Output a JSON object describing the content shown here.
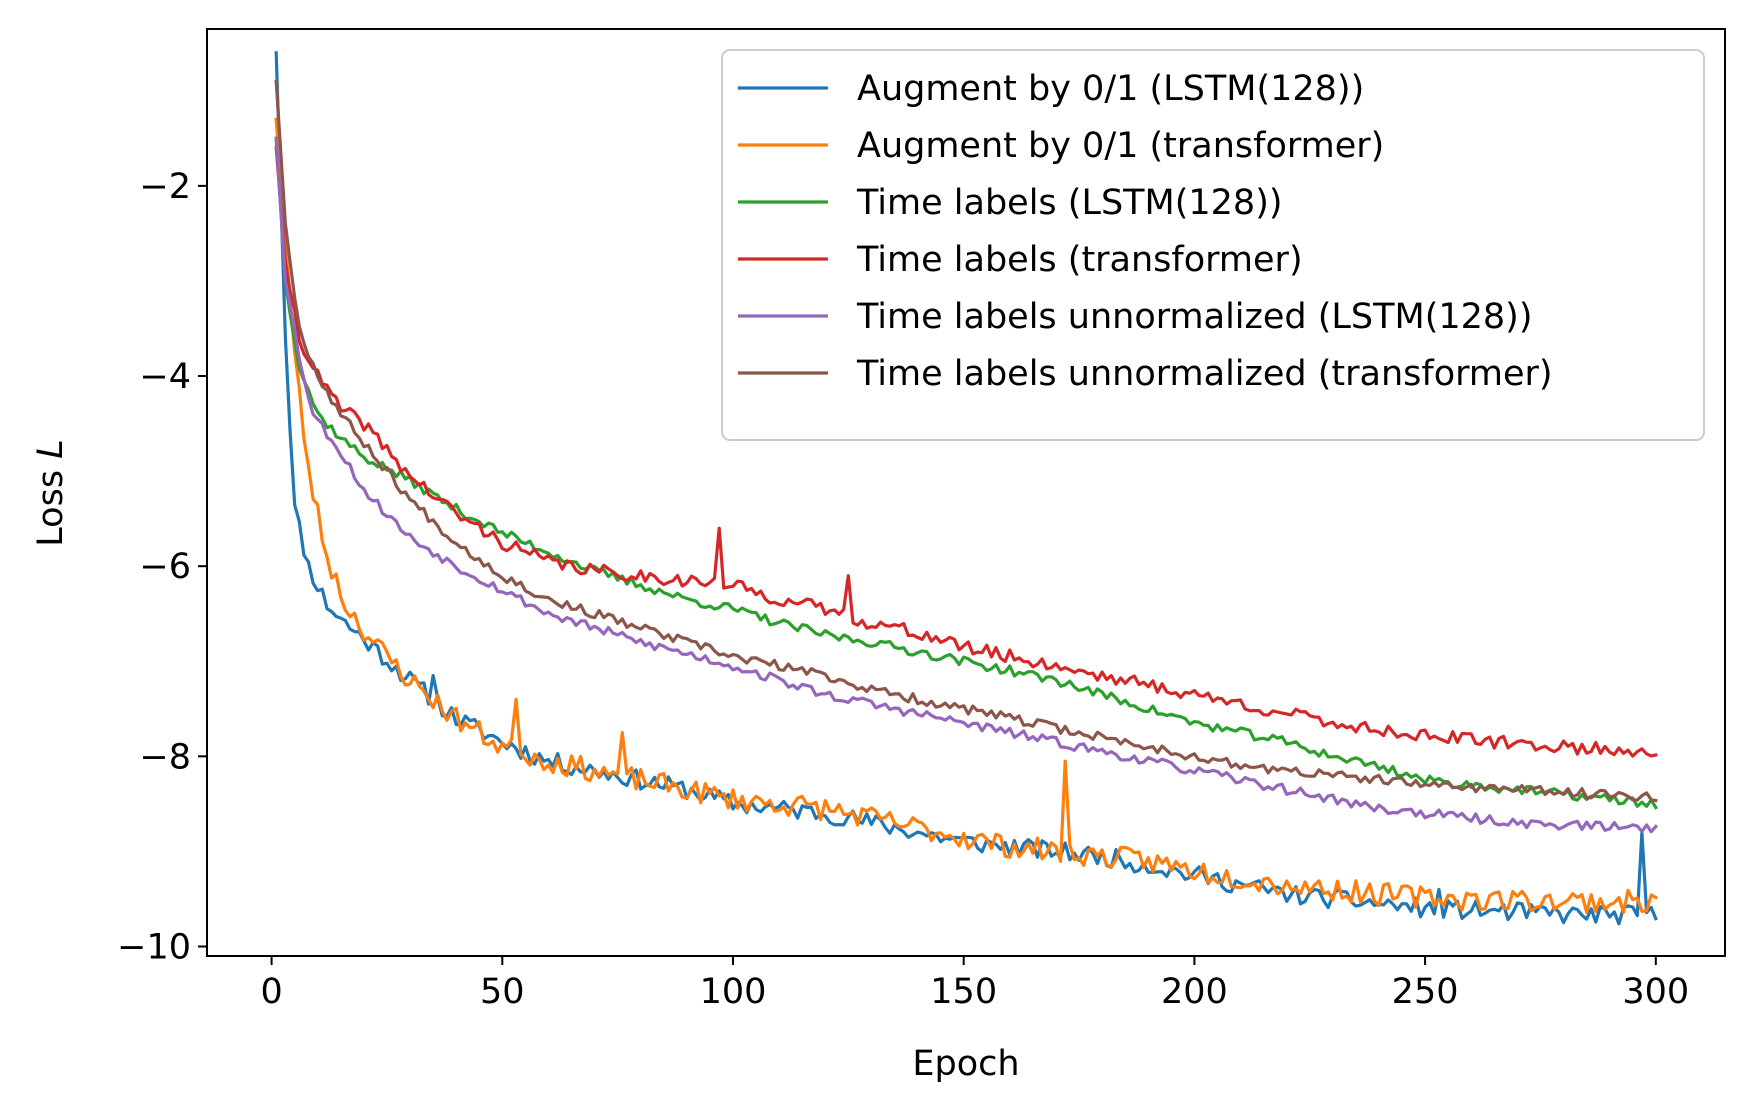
{
  "chart_data": {
    "type": "line",
    "title": "",
    "xlabel": "Epoch",
    "ylabel": "Loss L",
    "ylabel_parts": {
      "text": "Loss ",
      "italic": "L"
    },
    "xlim": [
      -14,
      315
    ],
    "ylim": [
      -10.1,
      -0.35
    ],
    "xticks": [
      0,
      50,
      100,
      150,
      200,
      250,
      300
    ],
    "yticks": [
      -2,
      -4,
      -6,
      -8,
      -10
    ],
    "xtick_labels": [
      "0",
      "50",
      "100",
      "150",
      "200",
      "250",
      "300"
    ],
    "ytick_labels": [
      "−2",
      "−4",
      "−6",
      "−8",
      "−10"
    ],
    "grid": false,
    "legend_position": "top-right",
    "x_range": [
      1,
      300
    ],
    "noise_seeds": [
      11,
      23,
      37,
      41,
      53,
      67
    ],
    "series": [
      {
        "name": "Augment by 0/1 (LSTM(128))",
        "color": "#1f77b4",
        "noise": 0.1,
        "points": [
          [
            1,
            -0.6
          ],
          [
            3,
            -3.6
          ],
          [
            5,
            -5.4
          ],
          [
            8,
            -6.0
          ],
          [
            12,
            -6.4
          ],
          [
            16,
            -6.6
          ],
          [
            22,
            -6.85
          ],
          [
            30,
            -7.2
          ],
          [
            40,
            -7.6
          ],
          [
            50,
            -7.85
          ],
          [
            60,
            -8.05
          ],
          [
            70,
            -8.15
          ],
          [
            80,
            -8.25
          ],
          [
            90,
            -8.35
          ],
          [
            100,
            -8.5
          ],
          [
            110,
            -8.55
          ],
          [
            120,
            -8.6
          ],
          [
            130,
            -8.7
          ],
          [
            140,
            -8.8
          ],
          [
            150,
            -8.9
          ],
          [
            160,
            -8.95
          ],
          [
            170,
            -9.0
          ],
          [
            180,
            -9.05
          ],
          [
            190,
            -9.15
          ],
          [
            200,
            -9.25
          ],
          [
            210,
            -9.35
          ],
          [
            220,
            -9.45
          ],
          [
            230,
            -9.5
          ],
          [
            240,
            -9.55
          ],
          [
            250,
            -9.6
          ],
          [
            260,
            -9.62
          ],
          [
            270,
            -9.64
          ],
          [
            280,
            -9.66
          ],
          [
            290,
            -9.67
          ],
          [
            300,
            -9.67
          ]
        ],
        "spikes": [
          [
            35,
            -7.15
          ],
          [
            253,
            -9.4
          ],
          [
            297,
            -8.8
          ]
        ]
      },
      {
        "name": "Augment by 0/1 (transformer)",
        "color": "#ff7f0e",
        "noise": 0.12,
        "points": [
          [
            1,
            -1.3
          ],
          [
            3,
            -2.6
          ],
          [
            5,
            -3.8
          ],
          [
            8,
            -5.0
          ],
          [
            12,
            -5.9
          ],
          [
            16,
            -6.4
          ],
          [
            22,
            -6.8
          ],
          [
            30,
            -7.2
          ],
          [
            40,
            -7.6
          ],
          [
            50,
            -7.9
          ],
          [
            60,
            -8.05
          ],
          [
            70,
            -8.15
          ],
          [
            80,
            -8.25
          ],
          [
            90,
            -8.35
          ],
          [
            100,
            -8.45
          ],
          [
            110,
            -8.5
          ],
          [
            120,
            -8.55
          ],
          [
            130,
            -8.65
          ],
          [
            140,
            -8.75
          ],
          [
            150,
            -8.85
          ],
          [
            160,
            -8.95
          ],
          [
            170,
            -9.0
          ],
          [
            180,
            -9.05
          ],
          [
            190,
            -9.1
          ],
          [
            200,
            -9.2
          ],
          [
            210,
            -9.28
          ],
          [
            220,
            -9.35
          ],
          [
            230,
            -9.4
          ],
          [
            240,
            -9.45
          ],
          [
            250,
            -9.48
          ],
          [
            260,
            -9.5
          ],
          [
            270,
            -9.51
          ],
          [
            280,
            -9.52
          ],
          [
            290,
            -9.53
          ],
          [
            300,
            -9.53
          ]
        ],
        "spikes": [
          [
            172,
            -8.05
          ],
          [
            53,
            -7.4
          ],
          [
            76,
            -7.75
          ]
        ]
      },
      {
        "name": "Time labels (LSTM(128))",
        "color": "#2ca02c",
        "noise": 0.05,
        "points": [
          [
            1,
            -1.5
          ],
          [
            3,
            -3.0
          ],
          [
            6,
            -3.9
          ],
          [
            10,
            -4.4
          ],
          [
            15,
            -4.65
          ],
          [
            20,
            -4.85
          ],
          [
            30,
            -5.1
          ],
          [
            40,
            -5.4
          ],
          [
            50,
            -5.65
          ],
          [
            60,
            -5.85
          ],
          [
            70,
            -6.05
          ],
          [
            80,
            -6.2
          ],
          [
            90,
            -6.35
          ],
          [
            100,
            -6.45
          ],
          [
            110,
            -6.6
          ],
          [
            120,
            -6.72
          ],
          [
            130,
            -6.8
          ],
          [
            140,
            -6.9
          ],
          [
            150,
            -7.0
          ],
          [
            160,
            -7.1
          ],
          [
            170,
            -7.2
          ],
          [
            180,
            -7.35
          ],
          [
            190,
            -7.5
          ],
          [
            200,
            -7.65
          ],
          [
            210,
            -7.75
          ],
          [
            220,
            -7.85
          ],
          [
            230,
            -8.0
          ],
          [
            240,
            -8.1
          ],
          [
            250,
            -8.25
          ],
          [
            260,
            -8.3
          ],
          [
            270,
            -8.35
          ],
          [
            280,
            -8.4
          ],
          [
            290,
            -8.45
          ],
          [
            300,
            -8.5
          ]
        ],
        "spikes": []
      },
      {
        "name": "Time labels (transformer)",
        "color": "#d62728",
        "noise": 0.07,
        "points": [
          [
            1,
            -1.6
          ],
          [
            3,
            -2.8
          ],
          [
            6,
            -3.6
          ],
          [
            10,
            -4.0
          ],
          [
            15,
            -4.35
          ],
          [
            20,
            -4.5
          ],
          [
            30,
            -5.05
          ],
          [
            40,
            -5.45
          ],
          [
            50,
            -5.75
          ],
          [
            60,
            -5.95
          ],
          [
            70,
            -6.05
          ],
          [
            80,
            -6.1
          ],
          [
            90,
            -6.15
          ],
          [
            100,
            -6.2
          ],
          [
            110,
            -6.35
          ],
          [
            120,
            -6.45
          ],
          [
            130,
            -6.6
          ],
          [
            140,
            -6.7
          ],
          [
            150,
            -6.85
          ],
          [
            160,
            -6.95
          ],
          [
            170,
            -7.05
          ],
          [
            180,
            -7.15
          ],
          [
            190,
            -7.25
          ],
          [
            200,
            -7.35
          ],
          [
            210,
            -7.45
          ],
          [
            220,
            -7.55
          ],
          [
            230,
            -7.65
          ],
          [
            240,
            -7.72
          ],
          [
            250,
            -7.78
          ],
          [
            260,
            -7.83
          ],
          [
            270,
            -7.87
          ],
          [
            280,
            -7.9
          ],
          [
            290,
            -7.93
          ],
          [
            300,
            -7.95
          ]
        ],
        "spikes": [
          [
            97,
            -5.6
          ],
          [
            125,
            -6.1
          ]
        ]
      },
      {
        "name": "Time labels unnormalized (LSTM(128))",
        "color": "#9467bd",
        "noise": 0.05,
        "points": [
          [
            1,
            -1.5
          ],
          [
            3,
            -3.0
          ],
          [
            6,
            -3.8
          ],
          [
            9,
            -4.4
          ],
          [
            15,
            -4.8
          ],
          [
            20,
            -5.2
          ],
          [
            30,
            -5.7
          ],
          [
            40,
            -6.0
          ],
          [
            50,
            -6.25
          ],
          [
            60,
            -6.5
          ],
          [
            70,
            -6.65
          ],
          [
            80,
            -6.8
          ],
          [
            90,
            -6.92
          ],
          [
            100,
            -7.05
          ],
          [
            110,
            -7.2
          ],
          [
            120,
            -7.35
          ],
          [
            130,
            -7.45
          ],
          [
            140,
            -7.55
          ],
          [
            150,
            -7.65
          ],
          [
            160,
            -7.75
          ],
          [
            170,
            -7.85
          ],
          [
            180,
            -7.95
          ],
          [
            190,
            -8.05
          ],
          [
            200,
            -8.15
          ],
          [
            210,
            -8.25
          ],
          [
            220,
            -8.35
          ],
          [
            230,
            -8.45
          ],
          [
            240,
            -8.55
          ],
          [
            250,
            -8.6
          ],
          [
            260,
            -8.65
          ],
          [
            270,
            -8.7
          ],
          [
            280,
            -8.72
          ],
          [
            290,
            -8.74
          ],
          [
            300,
            -8.75
          ]
        ],
        "spikes": []
      },
      {
        "name": "Time labels unnormalized (transformer)",
        "color": "#8c564b",
        "noise": 0.05,
        "points": [
          [
            1,
            -0.9
          ],
          [
            3,
            -2.4
          ],
          [
            6,
            -3.5
          ],
          [
            10,
            -4.0
          ],
          [
            15,
            -4.4
          ],
          [
            20,
            -4.7
          ],
          [
            30,
            -5.3
          ],
          [
            40,
            -5.75
          ],
          [
            50,
            -6.1
          ],
          [
            60,
            -6.35
          ],
          [
            70,
            -6.5
          ],
          [
            80,
            -6.65
          ],
          [
            90,
            -6.8
          ],
          [
            100,
            -6.95
          ],
          [
            110,
            -7.05
          ],
          [
            120,
            -7.15
          ],
          [
            130,
            -7.3
          ],
          [
            140,
            -7.4
          ],
          [
            150,
            -7.5
          ],
          [
            160,
            -7.6
          ],
          [
            170,
            -7.7
          ],
          [
            180,
            -7.8
          ],
          [
            190,
            -7.9
          ],
          [
            200,
            -8.0
          ],
          [
            210,
            -8.1
          ],
          [
            220,
            -8.15
          ],
          [
            230,
            -8.2
          ],
          [
            240,
            -8.25
          ],
          [
            250,
            -8.3
          ],
          [
            260,
            -8.32
          ],
          [
            270,
            -8.35
          ],
          [
            280,
            -8.38
          ],
          [
            290,
            -8.4
          ],
          [
            300,
            -8.42
          ]
        ],
        "spikes": []
      }
    ]
  }
}
